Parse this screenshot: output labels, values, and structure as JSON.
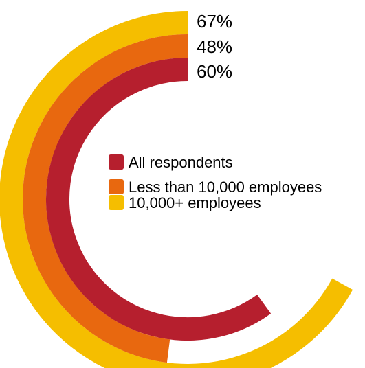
{
  "chart_data": {
    "type": "radial-bar",
    "series": [
      {
        "name": "10,000+ employees",
        "value": 67,
        "label": "67%",
        "color": "#F5BE00"
      },
      {
        "name": "Less than 10,000 employees",
        "value": 48,
        "label": "48%",
        "color": "#E8680F"
      },
      {
        "name": "All respondents",
        "value": 60,
        "label": "60%",
        "color": "#B61F2E"
      }
    ],
    "max": 100,
    "legend": [
      {
        "name": "All respondents",
        "color": "#B61F2E"
      },
      {
        "name": "Less than 10,000 employees",
        "color": "#E8680F"
      },
      {
        "name": "10,000+ employees",
        "color": "#F5BE00"
      }
    ],
    "legend_position": "center"
  }
}
